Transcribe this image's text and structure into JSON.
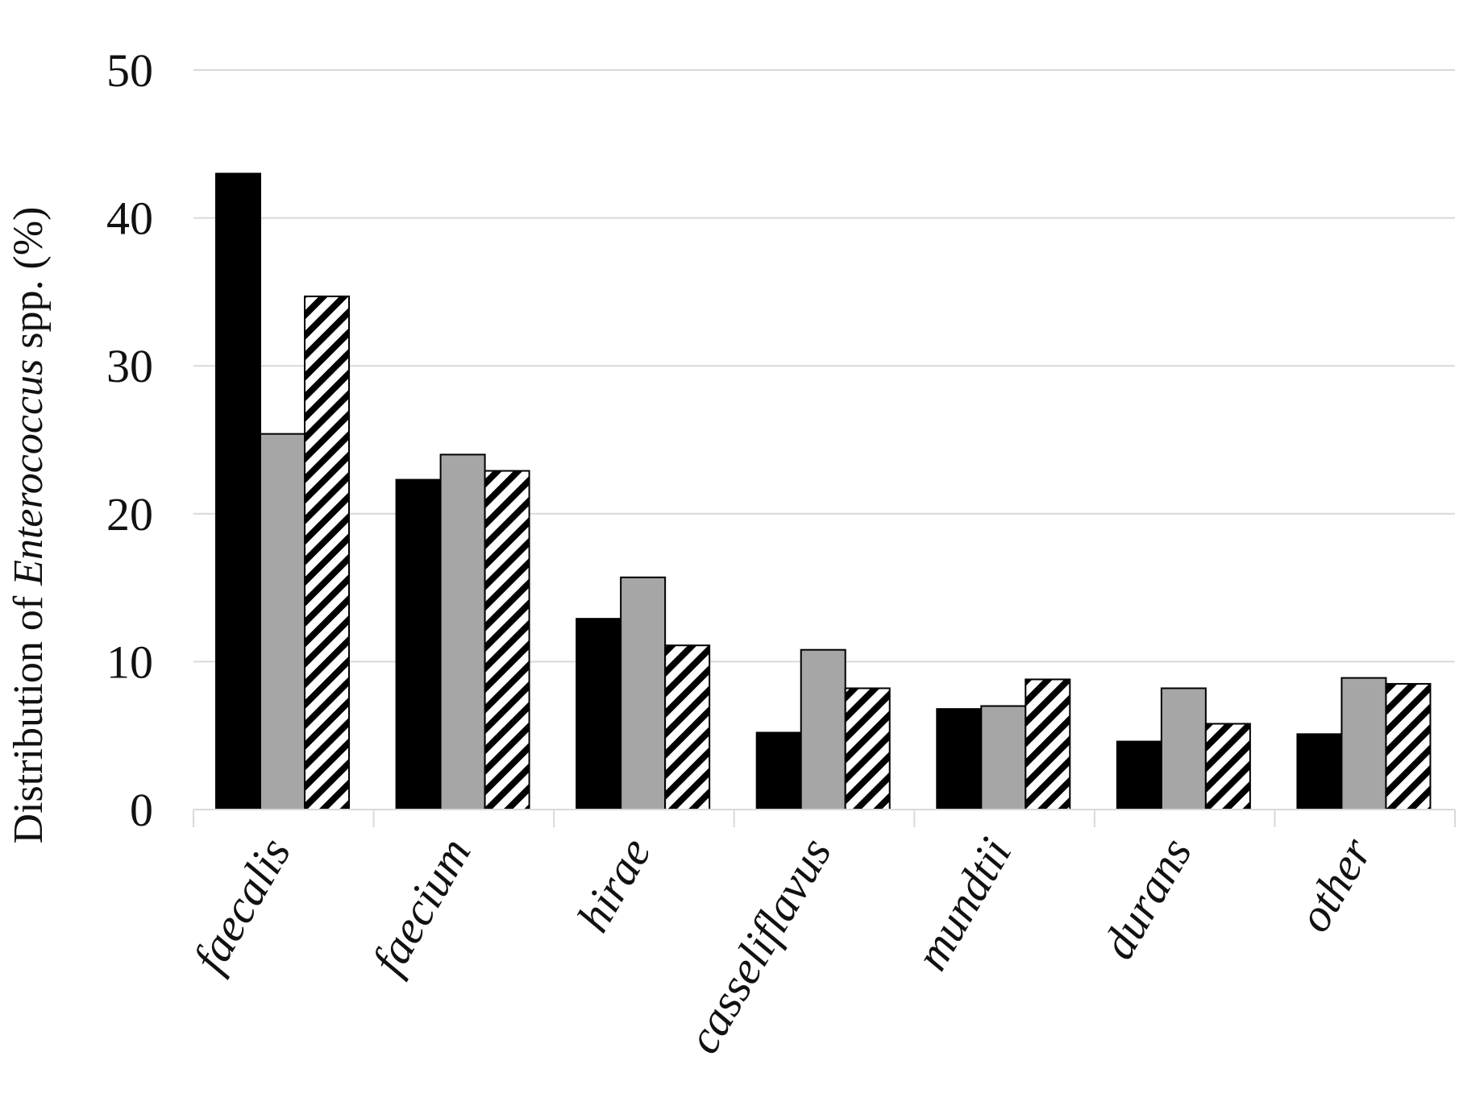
{
  "chart_data": {
    "type": "bar",
    "ylabel": {
      "prefix": "Distribution of ",
      "italic": "Enterococcus",
      "suffix": " spp. (%)"
    },
    "xlabel": "",
    "ylim": [
      0,
      50
    ],
    "yticks": [
      0,
      10,
      20,
      30,
      40,
      50
    ],
    "grid": true,
    "categories": [
      "faecalis",
      "faecium",
      "hirae",
      "casseliflavus",
      "mundtii",
      "durans",
      "other"
    ],
    "series": [
      {
        "values": [
          43.0,
          22.3,
          12.9,
          5.2,
          6.8,
          4.6,
          5.1
        ],
        "fill": "#000000",
        "pattern": "solid"
      },
      {
        "values": [
          25.4,
          24.0,
          15.7,
          10.8,
          7.0,
          8.2,
          8.9
        ],
        "fill": "#a6a6a6",
        "pattern": "solid"
      },
      {
        "values": [
          34.7,
          22.9,
          11.1,
          8.2,
          8.8,
          5.8,
          8.5
        ],
        "fill": "#ffffff",
        "pattern": "diagonal-stripes"
      }
    ]
  }
}
